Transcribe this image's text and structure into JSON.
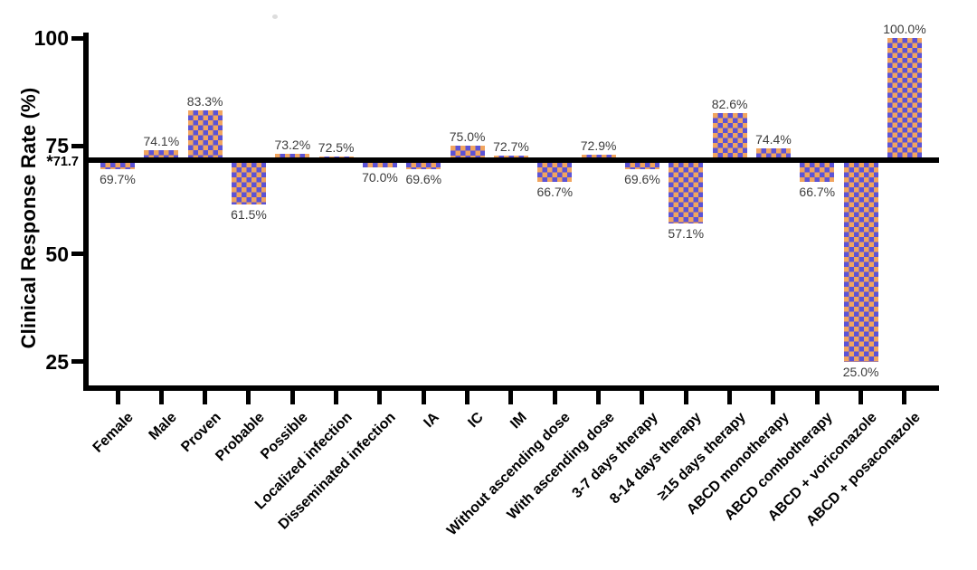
{
  "chart_data": {
    "type": "bar",
    "title": "",
    "ylabel": "Clinical Response Rate (%)",
    "xlabel": "",
    "categories": [
      "Female",
      "Male",
      "Proven",
      "Probable",
      "Possible",
      "Localized infection",
      "Disseminated infection",
      "IA",
      "IC",
      "IM",
      "Without ascending dose",
      "With ascending dose",
      "3-7 days therapy",
      "8-14 days therapy",
      "≥15 days therapy",
      "ABCD monotherapy",
      "ABCD combotherapy",
      "ABCD + voriconazole",
      "ABCD + posaconazole"
    ],
    "values": [
      69.7,
      74.1,
      83.3,
      61.5,
      73.2,
      72.5,
      70.0,
      69.6,
      75.0,
      72.7,
      66.7,
      72.9,
      69.6,
      57.1,
      82.6,
      74.4,
      66.7,
      25.0,
      100.0
    ],
    "value_labels": [
      "69.7%",
      "74.1%",
      "83.3%",
      "61.5%",
      "73.2%",
      "72.5%",
      "70.0%",
      "69.6%",
      "75.0%",
      "72.7%",
      "66.7%",
      "72.9%",
      "69.6%",
      "57.1%",
      "82.6%",
      "74.4%",
      "66.7%",
      "25.0%",
      "100.0%"
    ],
    "baseline": {
      "value": 71.7,
      "star": "*",
      "label": "71.7",
      "display": "*71.7"
    },
    "yticks": [
      {
        "value": 100,
        "label": "100"
      },
      {
        "value": 75,
        "label": "75"
      },
      {
        "value": 50,
        "label": "50"
      },
      {
        "value": 25,
        "label": "25"
      }
    ],
    "ylim": [
      19.3,
      100
    ],
    "grid": false,
    "legend": null,
    "bar_style": {
      "pattern": "checkerboard",
      "color_purple": "#5c53d6",
      "color_orange": "#f1a55f",
      "checker_size_px": 5.5
    },
    "axis_color": "#000000",
    "value_label_color": "#3c3c3c"
  }
}
